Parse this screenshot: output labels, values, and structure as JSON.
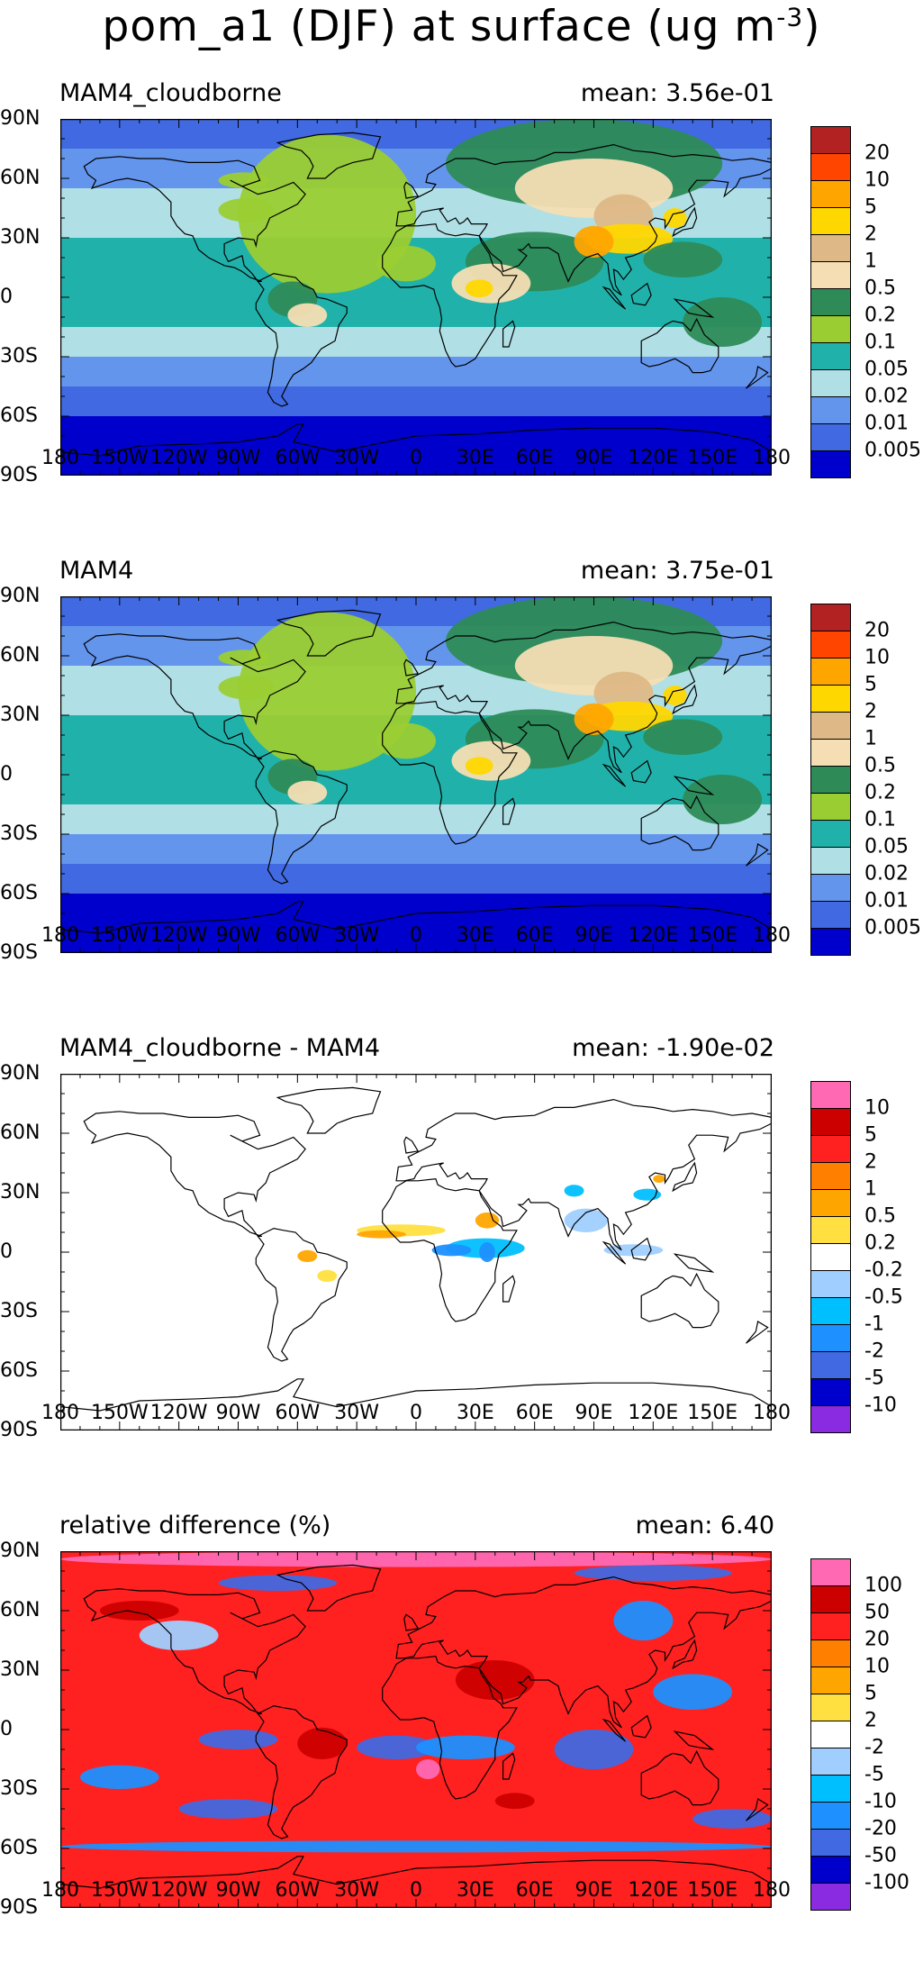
{
  "figure": {
    "title_main": "pom_a1 (DJF) at surface (ug m",
    "title_exp": "-3",
    "title_close": ")"
  },
  "axes": {
    "lat_labels": [
      "90N",
      "60N",
      "30N",
      "0",
      "30S",
      "60S",
      "90S"
    ],
    "lon_labels": [
      "180",
      "150W",
      "120W",
      "90W",
      "60W",
      "30W",
      "0",
      "30E",
      "60E",
      "90E",
      "120E",
      "150E",
      "180"
    ]
  },
  "panels": [
    {
      "title": "MAM4_cloudborne",
      "mean": "mean: 3.56e-01",
      "field": "concentration",
      "levels": [
        "20",
        "10",
        "5",
        "2",
        "1",
        "0.5",
        "0.2",
        "0.1",
        "0.05",
        "0.02",
        "0.01",
        "0.005"
      ],
      "colors": [
        "#b22222",
        "#ff4500",
        "#ffa500",
        "#ffd700",
        "#deb887",
        "#f5deb3",
        "#2e8b57",
        "#9acd32",
        "#20b2aa",
        "#b0e0e6",
        "#6495ed",
        "#4169e1",
        "#0000cd"
      ]
    },
    {
      "title": "MAM4",
      "mean": "mean: 3.75e-01",
      "field": "concentration",
      "levels": [
        "20",
        "10",
        "5",
        "2",
        "1",
        "0.5",
        "0.2",
        "0.1",
        "0.05",
        "0.02",
        "0.01",
        "0.005"
      ],
      "colors": [
        "#b22222",
        "#ff4500",
        "#ffa500",
        "#ffd700",
        "#deb887",
        "#f5deb3",
        "#2e8b57",
        "#9acd32",
        "#20b2aa",
        "#b0e0e6",
        "#6495ed",
        "#4169e1",
        "#0000cd"
      ]
    },
    {
      "title": "MAM4_cloudborne - MAM4",
      "mean": "mean: -1.90e-02",
      "field": "difference",
      "levels": [
        "10",
        "5",
        "2",
        "1",
        "0.5",
        "0.2",
        "-0.2",
        "-0.5",
        "-1",
        "-2",
        "-5",
        "-10"
      ],
      "colors": [
        "#ff69b4",
        "#cd0000",
        "#ff2020",
        "#ff7f00",
        "#ffa500",
        "#ffe040",
        "#ffffff",
        "#a0cfff",
        "#00bfff",
        "#1e90ff",
        "#4169e1",
        "#0000cd",
        "#8a2be2"
      ]
    },
    {
      "title": "relative difference (%)",
      "mean": "mean:  6.40",
      "field": "relative",
      "levels": [
        "100",
        "50",
        "20",
        "10",
        "5",
        "2",
        "-2",
        "-5",
        "-10",
        "-20",
        "-50",
        "-100"
      ],
      "colors": [
        "#ff69b4",
        "#cd0000",
        "#ff2020",
        "#ff7f00",
        "#ffa500",
        "#ffe040",
        "#ffffff",
        "#a0cfff",
        "#00bfff",
        "#1e90ff",
        "#4169e1",
        "#0000cd",
        "#8a2be2"
      ]
    }
  ]
}
